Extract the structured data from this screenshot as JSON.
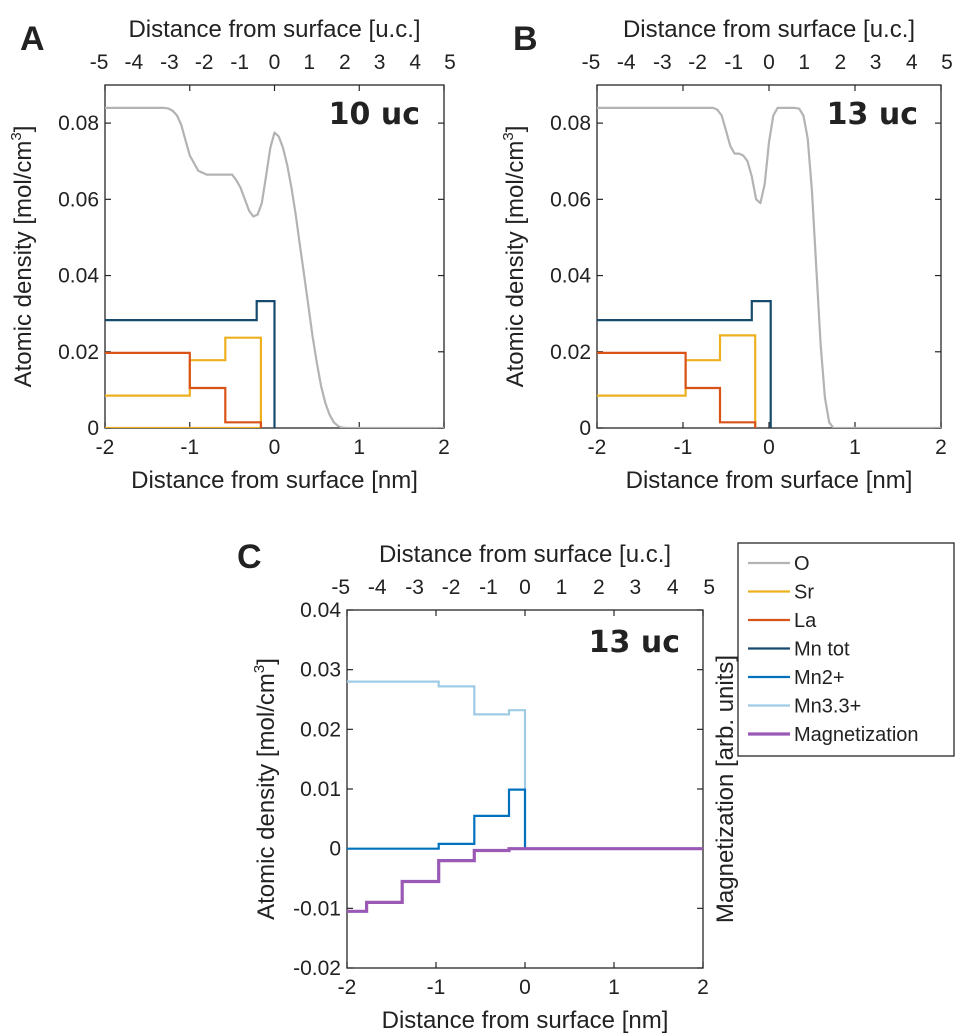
{
  "colors": {
    "O": "#b3b3b3",
    "Sr": "#edb120",
    "La": "#d95319",
    "Mn tot": "#164b6e",
    "Mn2+": "#0072bd",
    "Mn3.3+": "#9fcbe5",
    "Magnetization": "#9b59b6"
  },
  "legend": {
    "entries": [
      "O",
      "Sr",
      "La",
      "Mn tot",
      "Mn2+",
      "Mn3.3+",
      "Magnetization"
    ]
  },
  "chart_data": [
    {
      "id": "A",
      "type": "line",
      "panel_label": "A",
      "annotation": "10 uc",
      "xlabel": "Distance from surface [nm]",
      "x2label": "Distance from surface [u.c.]",
      "ylabel": "Atomic density [mol/cm",
      "ylabel_sup": "3",
      "ylabel_end": "]",
      "xlim": [
        -2,
        2
      ],
      "ylim": [
        0,
        0.09
      ],
      "xticks": [
        "-2",
        "-1",
        "0",
        "1",
        "2"
      ],
      "yticks": [
        "0",
        "0.02",
        "0.04",
        "0.06",
        "0.08"
      ],
      "x2ticks": [
        "-5",
        "-4",
        "-3",
        "-2",
        "-1",
        "0",
        "1",
        "2",
        "3",
        "4",
        "5"
      ],
      "x2ticks_nm": [
        -2.07,
        -1.66,
        -1.24,
        -0.83,
        -0.41,
        0,
        0.41,
        0.83,
        1.24,
        1.66,
        2.07
      ],
      "series": [
        {
          "name": "O",
          "x": [
            -2,
            -1.3,
            -1.25,
            -1.2,
            -1.15,
            -1.1,
            -1.05,
            -1.0,
            -0.9,
            -0.8,
            -0.7,
            -0.6,
            -0.5,
            -0.45,
            -0.4,
            -0.35,
            -0.3,
            -0.25,
            -0.2,
            -0.15,
            -0.1,
            -0.05,
            0,
            0.05,
            0.1,
            0.15,
            0.2,
            0.25,
            0.3,
            0.35,
            0.4,
            0.45,
            0.5,
            0.55,
            0.6,
            0.65,
            0.7,
            0.75,
            0.8,
            0.85,
            0.9,
            2
          ],
          "values": [
            0.084,
            0.084,
            0.0838,
            0.0832,
            0.082,
            0.0795,
            0.0755,
            0.0715,
            0.0675,
            0.0665,
            0.0665,
            0.0665,
            0.0665,
            0.065,
            0.063,
            0.06,
            0.057,
            0.0555,
            0.056,
            0.059,
            0.066,
            0.0735,
            0.0775,
            0.0765,
            0.0735,
            0.069,
            0.063,
            0.056,
            0.048,
            0.04,
            0.032,
            0.024,
            0.017,
            0.011,
            0.0065,
            0.0035,
            0.0015,
            0.0005,
            0.0001,
            0,
            0,
            0
          ]
        },
        {
          "name": "Sr",
          "x": [
            -2,
            -1.0,
            -1.0,
            -0.58,
            -0.58,
            -0.16,
            -0.16,
            -2.0
          ],
          "values": [
            0.0085,
            0.0085,
            0.0178,
            0.0178,
            0.0237,
            0.0237,
            0,
            0
          ],
          "draw": [
            -2,
            -1.0,
            -1.0,
            -0.58,
            -0.58,
            -0.16,
            -0.16
          ]
        },
        {
          "name": "La",
          "x": [
            -2,
            -1.0,
            -1.0,
            -0.58,
            -0.58,
            -0.16,
            -0.16
          ],
          "values": [
            0.0197,
            0.0197,
            0.0105,
            0.0105,
            0.0015,
            0.0015,
            0
          ]
        },
        {
          "name": "Mn tot",
          "x": [
            -2,
            -0.21,
            -0.21,
            0.0,
            0.0
          ],
          "values": [
            0.0283,
            0.0283,
            0.0333,
            0.0333,
            0
          ]
        }
      ]
    },
    {
      "id": "B",
      "type": "line",
      "panel_label": "B",
      "annotation": "13 uc",
      "xlabel": "Distance from surface [nm]",
      "x2label": "Distance from surface [u.c.]",
      "ylabel": "Atomic density [mol/cm",
      "ylabel_sup": "3",
      "ylabel_end": "]",
      "xlim": [
        -2,
        2
      ],
      "ylim": [
        0,
        0.09
      ],
      "xticks": [
        "-2",
        "-1",
        "0",
        "1",
        "2"
      ],
      "yticks": [
        "0",
        "0.02",
        "0.04",
        "0.06",
        "0.08"
      ],
      "x2ticks": [
        "-5",
        "-4",
        "-3",
        "-2",
        "-1",
        "0",
        "1",
        "2",
        "3",
        "4",
        "5"
      ],
      "x2ticks_nm": [
        -2.07,
        -1.66,
        -1.24,
        -0.83,
        -0.41,
        0,
        0.41,
        0.83,
        1.24,
        1.66,
        2.07
      ],
      "series": [
        {
          "name": "O",
          "x": [
            -2,
            -0.65,
            -0.6,
            -0.55,
            -0.5,
            -0.45,
            -0.4,
            -0.35,
            -0.3,
            -0.25,
            -0.2,
            -0.15,
            -0.1,
            -0.05,
            0,
            0.05,
            0.1,
            0.15,
            0.2,
            0.25,
            0.3,
            0.35,
            0.4,
            0.45,
            0.5,
            0.55,
            0.6,
            0.65,
            0.7,
            0.75,
            2
          ],
          "values": [
            0.084,
            0.084,
            0.0835,
            0.082,
            0.078,
            0.074,
            0.072,
            0.072,
            0.0715,
            0.07,
            0.066,
            0.06,
            0.059,
            0.064,
            0.075,
            0.082,
            0.084,
            0.084,
            0.084,
            0.084,
            0.084,
            0.0838,
            0.082,
            0.076,
            0.062,
            0.042,
            0.022,
            0.008,
            0.0015,
            0,
            0
          ]
        },
        {
          "name": "Sr",
          "x": [
            -2,
            -0.97,
            -0.97,
            -0.57,
            -0.57,
            -0.16,
            -0.16
          ],
          "values": [
            0.0085,
            0.0085,
            0.0178,
            0.0178,
            0.0243,
            0.0243,
            0
          ]
        },
        {
          "name": "La",
          "x": [
            -2,
            -0.97,
            -0.97,
            -0.57,
            -0.57,
            -0.16,
            -0.16
          ],
          "values": [
            0.0197,
            0.0197,
            0.0105,
            0.0105,
            0.0015,
            0.0015,
            0
          ]
        },
        {
          "name": "Mn tot",
          "x": [
            -2,
            -0.2,
            -0.2,
            0.02,
            0.02
          ],
          "values": [
            0.0283,
            0.0283,
            0.0333,
            0.0333,
            0
          ]
        }
      ]
    },
    {
      "id": "C",
      "type": "line",
      "panel_label": "C",
      "annotation": "13 uc",
      "xlabel": "Distance from surface [nm]",
      "x2label": "Distance from surface [u.c.]",
      "ylabel": "Atomic density [mol/cm",
      "ylabel_sup": "3",
      "ylabel_end": "]",
      "y2label": "Magnetization [arb. units]",
      "xlim": [
        -2,
        2
      ],
      "ylim": [
        -0.02,
        0.04
      ],
      "xticks": [
        "-2",
        "-1",
        "0",
        "1",
        "2"
      ],
      "yticks": [
        "-0.02",
        "-0.01",
        "0",
        "0.01",
        "0.02",
        "0.03",
        "0.04"
      ],
      "x2ticks": [
        "-5",
        "-4",
        "-3",
        "-2",
        "-1",
        "0",
        "1",
        "2",
        "3",
        "4",
        "5"
      ],
      "x2ticks_nm": [
        -2.07,
        -1.66,
        -1.24,
        -0.83,
        -0.41,
        0,
        0.41,
        0.83,
        1.24,
        1.66,
        2.07
      ],
      "series": [
        {
          "name": "Mn3.3+",
          "x": [
            -2,
            -0.97,
            -0.97,
            -0.57,
            -0.57,
            -0.18,
            -0.18,
            0.0,
            0.0
          ],
          "values": [
            0.028,
            0.028,
            0.0272,
            0.0272,
            0.0225,
            0.0225,
            0.0232,
            0.0232,
            0
          ]
        },
        {
          "name": "Mn2+",
          "x": [
            -2,
            -0.97,
            -0.97,
            -0.57,
            -0.57,
            -0.18,
            -0.18,
            0.0,
            0.0,
            2
          ],
          "values": [
            0,
            0,
            0.0008,
            0.0008,
            0.0055,
            0.0055,
            0.0099,
            0.0099,
            0,
            0
          ]
        },
        {
          "name": "Magnetization",
          "x": [
            -2,
            -1.78,
            -1.78,
            -1.38,
            -1.38,
            -0.97,
            -0.97,
            -0.57,
            -0.57,
            -0.18,
            -0.18,
            2
          ],
          "values": [
            -0.0105,
            -0.0105,
            -0.009,
            -0.009,
            -0.0055,
            -0.0055,
            -0.002,
            -0.002,
            -0.0003,
            -0.0003,
            0,
            0
          ]
        }
      ]
    }
  ]
}
